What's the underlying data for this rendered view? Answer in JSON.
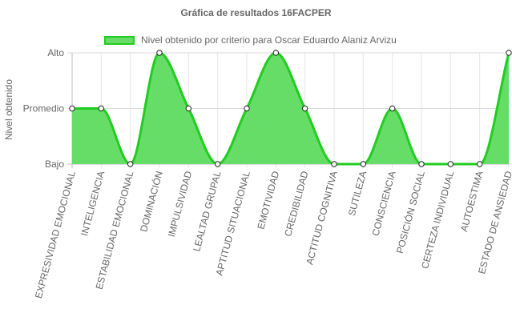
{
  "chart_data": {
    "type": "line",
    "title": "Gráfica de resultados 16FACPER",
    "ylabel": "Nivel obtenido",
    "xlabel": "",
    "y_categories": [
      "Bajo",
      "Promedio",
      "Alto"
    ],
    "ylim": [
      0,
      2
    ],
    "grid": true,
    "legend_position": "top",
    "categories": [
      "EXPRESIVIDAD EMOCIONAL",
      "INTELIGENCIA",
      "ESTABILIDAD EMOCIONAL",
      "DOMINACIÓN",
      "IMPULSIVIDAD",
      "LEALTAD GRUPAL",
      "APTITUD SITUACIONAL",
      "EMOTIVIDAD",
      "CREDIBILIDAD",
      "ACTITUD COGNITIVA",
      "SUTILEZA",
      "CONSCIENCIA",
      "POSICIÓN SOCIAL",
      "CERTEZA INDIVIDUAL",
      "AUTOESTIMA",
      "ESTADO DE ANSIEDAD"
    ],
    "series": [
      {
        "name": "Nivel obtenido por criterio para Oscar Eduardo Alaniz Arvizu",
        "values": [
          1,
          1,
          0,
          2,
          1,
          0,
          1,
          2,
          1,
          0,
          0,
          1,
          0,
          0,
          0,
          2
        ],
        "color": "#22cc22",
        "fill": "#66dd66"
      }
    ]
  }
}
